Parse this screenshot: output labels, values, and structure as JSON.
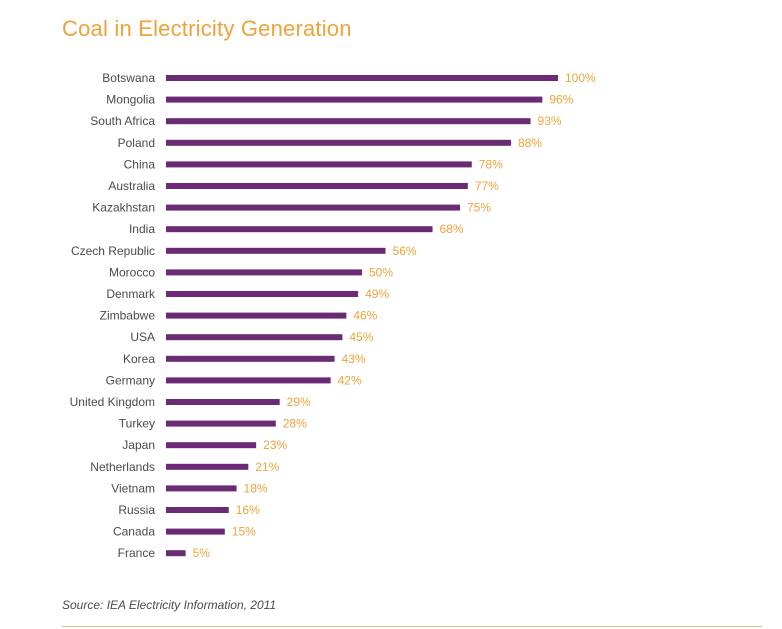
{
  "chart_data": {
    "type": "bar",
    "orientation": "horizontal",
    "title": "Coal in Electricity Generation",
    "categories": [
      "Botswana",
      "Mongolia",
      "South Africa",
      "Poland",
      "China",
      "Australia",
      "Kazakhstan",
      "India",
      "Czech Republic",
      "Morocco",
      "Denmark",
      "Zimbabwe",
      "USA",
      "Korea",
      "Germany",
      "United Kingdom",
      "Turkey",
      "Japan",
      "Netherlands",
      "Vietnam",
      "Russia",
      "Canada",
      "France"
    ],
    "values": [
      100,
      96,
      93,
      88,
      78,
      77,
      75,
      68,
      56,
      50,
      49,
      46,
      45,
      43,
      42,
      29,
      28,
      23,
      21,
      18,
      16,
      15,
      5
    ],
    "value_labels": [
      "100%",
      "96%",
      "93%",
      "88%",
      "78%",
      "77%",
      "75%",
      "68%",
      "56%",
      "50%",
      "49%",
      "46%",
      "45%",
      "43%",
      "42%",
      "29%",
      "28%",
      "23%",
      "21%",
      "18%",
      "16%",
      "15%",
      "5%"
    ],
    "xlim": [
      0,
      100
    ],
    "grid": false,
    "colors": {
      "bar": "#6b2a74",
      "value_label": "#f0a23a",
      "title": "#f0a23a",
      "category_label": "#4a4a4a"
    }
  },
  "source": "Source: IEA Electricity Information, 2011"
}
